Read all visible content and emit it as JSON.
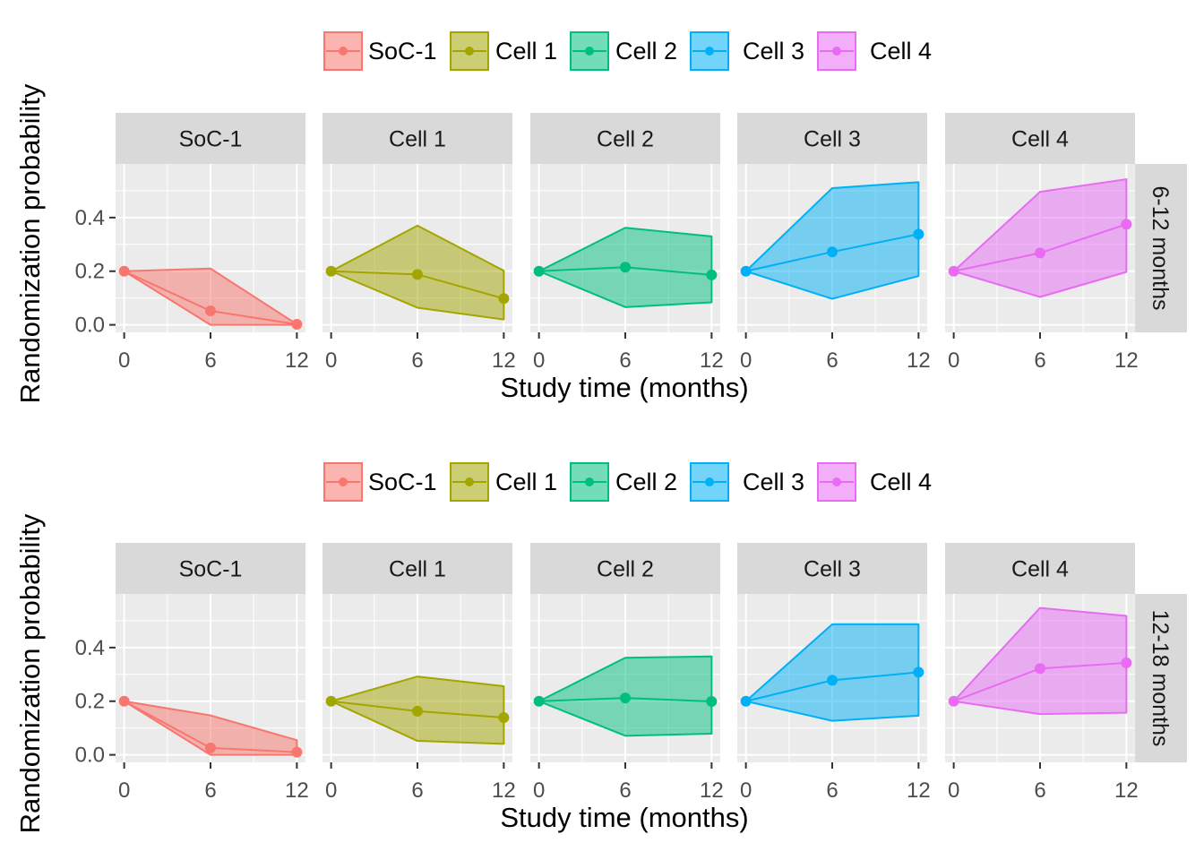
{
  "chart_data": [
    {
      "type": "area",
      "row_label": "6-12 months",
      "xlabel": "Study time (months)",
      "ylabel": "Randomization probability",
      "x_ticks": [
        0,
        6,
        12
      ],
      "y_ticks": [
        0.0,
        0.2,
        0.4
      ],
      "y_tick_labels": [
        "0.0",
        "0.2",
        "0.4"
      ],
      "xlim": [
        -0.6,
        12.6
      ],
      "ylim": [
        -0.028,
        0.6
      ],
      "grid": true,
      "legend": {
        "position": "top",
        "entries": [
          "SoC-1",
          "Cell 1",
          "Cell 2",
          "Cell 3",
          "Cell 4"
        ]
      },
      "panels": [
        {
          "name": "SoC-1",
          "x": [
            0,
            6,
            12
          ],
          "mean": [
            0.2,
            0.052,
            0.002
          ],
          "lower": [
            0.2,
            0.0,
            0.0
          ],
          "upper": [
            0.2,
            0.21,
            0.002
          ]
        },
        {
          "name": "Cell 1",
          "x": [
            0,
            6,
            12
          ],
          "mean": [
            0.2,
            0.188,
            0.098
          ],
          "lower": [
            0.2,
            0.064,
            0.02
          ],
          "upper": [
            0.2,
            0.37,
            0.202
          ]
        },
        {
          "name": "Cell 2",
          "x": [
            0,
            6,
            12
          ],
          "mean": [
            0.2,
            0.215,
            0.186
          ],
          "lower": [
            0.2,
            0.066,
            0.084
          ],
          "upper": [
            0.2,
            0.362,
            0.33
          ]
        },
        {
          "name": "Cell 3",
          "x": [
            0,
            6,
            12
          ],
          "mean": [
            0.2,
            0.272,
            0.338
          ],
          "lower": [
            0.2,
            0.097,
            0.182
          ],
          "upper": [
            0.2,
            0.51,
            0.532
          ]
        },
        {
          "name": "Cell 4",
          "x": [
            0,
            6,
            12
          ],
          "mean": [
            0.2,
            0.268,
            0.375
          ],
          "lower": [
            0.2,
            0.104,
            0.197
          ],
          "upper": [
            0.2,
            0.496,
            0.543
          ]
        }
      ]
    },
    {
      "type": "area",
      "row_label": "12-18 months",
      "xlabel": "Study time (months)",
      "ylabel": "Randomization probability",
      "x_ticks": [
        0,
        6,
        12
      ],
      "y_ticks": [
        0.0,
        0.2,
        0.4
      ],
      "y_tick_labels": [
        "0.0",
        "0.2",
        "0.4"
      ],
      "xlim": [
        -0.6,
        12.6
      ],
      "ylim": [
        -0.028,
        0.6
      ],
      "grid": true,
      "legend": {
        "position": "top",
        "entries": [
          "SoC-1",
          "Cell 1",
          "Cell 2",
          "Cell 3",
          "Cell 4"
        ]
      },
      "panels": [
        {
          "name": "SoC-1",
          "x": [
            0,
            6,
            12
          ],
          "mean": [
            0.2,
            0.026,
            0.01
          ],
          "lower": [
            0.2,
            0.0,
            0.0
          ],
          "upper": [
            0.2,
            0.147,
            0.055
          ]
        },
        {
          "name": "Cell 1",
          "x": [
            0,
            6,
            12
          ],
          "mean": [
            0.2,
            0.163,
            0.139
          ],
          "lower": [
            0.2,
            0.052,
            0.041
          ],
          "upper": [
            0.2,
            0.292,
            0.256
          ]
        },
        {
          "name": "Cell 2",
          "x": [
            0,
            6,
            12
          ],
          "mean": [
            0.2,
            0.212,
            0.199
          ],
          "lower": [
            0.2,
            0.071,
            0.079
          ],
          "upper": [
            0.2,
            0.362,
            0.367
          ]
        },
        {
          "name": "Cell 3",
          "x": [
            0,
            6,
            12
          ],
          "mean": [
            0.2,
            0.278,
            0.308
          ],
          "lower": [
            0.2,
            0.127,
            0.146
          ],
          "upper": [
            0.2,
            0.487,
            0.487
          ]
        },
        {
          "name": "Cell 4",
          "x": [
            0,
            6,
            12
          ],
          "mean": [
            0.2,
            0.322,
            0.343
          ],
          "lower": [
            0.2,
            0.152,
            0.157
          ],
          "upper": [
            0.2,
            0.548,
            0.518
          ]
        }
      ]
    }
  ],
  "colors": {
    "SoC-1": "#F8766D",
    "Cell 1": "#A3A500",
    "Cell 2": "#00BF7D",
    "Cell 3": "#00B0F6",
    "Cell 4": "#E76BF3",
    "panel_background": "#EBEBEB",
    "strip_background": "#D9D9D9",
    "grid_major": "#FFFFFF"
  }
}
